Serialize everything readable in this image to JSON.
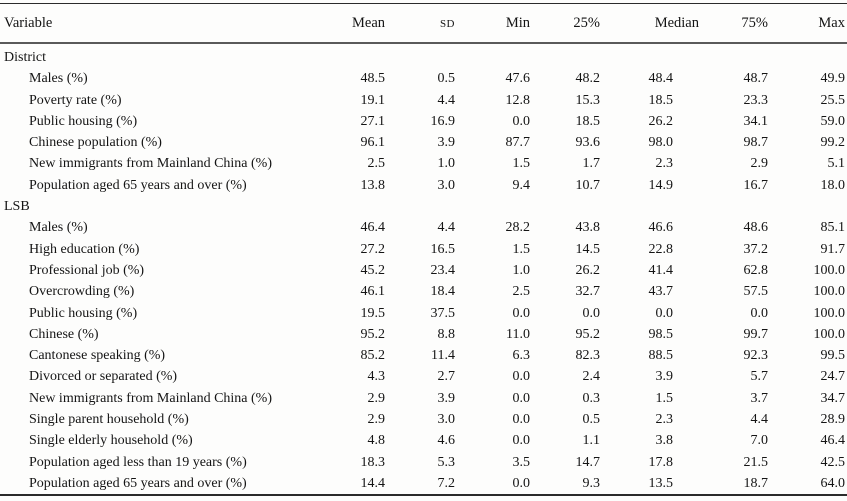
{
  "table": {
    "columns": [
      "Variable",
      "Mean",
      "SD",
      "Min",
      "25%",
      "Median",
      "75%",
      "Max"
    ],
    "sections": [
      {
        "name": "District",
        "rows": [
          {
            "label": "Males (%)",
            "values": [
              "48.5",
              "0.5",
              "47.6",
              "48.2",
              "48.4",
              "48.7",
              "49.9"
            ]
          },
          {
            "label": "Poverty rate (%)",
            "values": [
              "19.1",
              "4.4",
              "12.8",
              "15.3",
              "18.5",
              "23.3",
              "25.5"
            ]
          },
          {
            "label": "Public housing (%)",
            "values": [
              "27.1",
              "16.9",
              "0.0",
              "18.5",
              "26.2",
              "34.1",
              "59.0"
            ]
          },
          {
            "label": "Chinese population (%)",
            "values": [
              "96.1",
              "3.9",
              "87.7",
              "93.6",
              "98.0",
              "98.7",
              "99.2"
            ]
          },
          {
            "label": "New immigrants from Mainland China (%)",
            "values": [
              "2.5",
              "1.0",
              "1.5",
              "1.7",
              "2.3",
              "2.9",
              "5.1"
            ]
          },
          {
            "label": "Population aged 65 years and over (%)",
            "values": [
              "13.8",
              "3.0",
              "9.4",
              "10.7",
              "14.9",
              "16.7",
              "18.0"
            ]
          }
        ]
      },
      {
        "name": "LSB",
        "rows": [
          {
            "label": "Males (%)",
            "values": [
              "46.4",
              "4.4",
              "28.2",
              "43.8",
              "46.6",
              "48.6",
              "85.1"
            ]
          },
          {
            "label": "High education (%)",
            "values": [
              "27.2",
              "16.5",
              "1.5",
              "14.5",
              "22.8",
              "37.2",
              "91.7"
            ]
          },
          {
            "label": "Professional job (%)",
            "values": [
              "45.2",
              "23.4",
              "1.0",
              "26.2",
              "41.4",
              "62.8",
              "100.0"
            ]
          },
          {
            "label": "Overcrowding (%)",
            "values": [
              "46.1",
              "18.4",
              "2.5",
              "32.7",
              "43.7",
              "57.5",
              "100.0"
            ]
          },
          {
            "label": "Public housing (%)",
            "values": [
              "19.5",
              "37.5",
              "0.0",
              "0.0",
              "0.0",
              "0.0",
              "100.0"
            ]
          },
          {
            "label": "Chinese (%)",
            "values": [
              "95.2",
              "8.8",
              "11.0",
              "95.2",
              "98.5",
              "99.7",
              "100.0"
            ]
          },
          {
            "label": "Cantonese speaking (%)",
            "values": [
              "85.2",
              "11.4",
              "6.3",
              "82.3",
              "88.5",
              "92.3",
              "99.5"
            ]
          },
          {
            "label": "Divorced or separated (%)",
            "values": [
              "4.3",
              "2.7",
              "0.0",
              "2.4",
              "3.9",
              "5.7",
              "24.7"
            ]
          },
          {
            "label": "New immigrants from Mainland China (%)",
            "values": [
              "2.9",
              "3.9",
              "0.0",
              "0.3",
              "1.5",
              "3.7",
              "34.7"
            ]
          },
          {
            "label": "Single parent household (%)",
            "values": [
              "2.9",
              "3.0",
              "0.0",
              "0.5",
              "2.3",
              "4.4",
              "28.9"
            ]
          },
          {
            "label": "Single elderly household (%)",
            "values": [
              "4.8",
              "4.6",
              "0.0",
              "1.1",
              "3.8",
              "7.0",
              "46.4"
            ]
          },
          {
            "label": "Population aged less than 19 years (%)",
            "values": [
              "18.3",
              "5.3",
              "3.5",
              "14.7",
              "17.8",
              "21.5",
              "42.5"
            ]
          },
          {
            "label": "Population aged 65 years and over (%)",
            "values": [
              "14.4",
              "7.2",
              "0.0",
              "9.3",
              "13.5",
              "18.7",
              "64.0"
            ]
          }
        ]
      }
    ]
  },
  "colors": {
    "rule_dark": "#2b2b2b",
    "rule_gray": "#5a5a5a",
    "text": "#141414",
    "background": "#fdfdfc"
  }
}
